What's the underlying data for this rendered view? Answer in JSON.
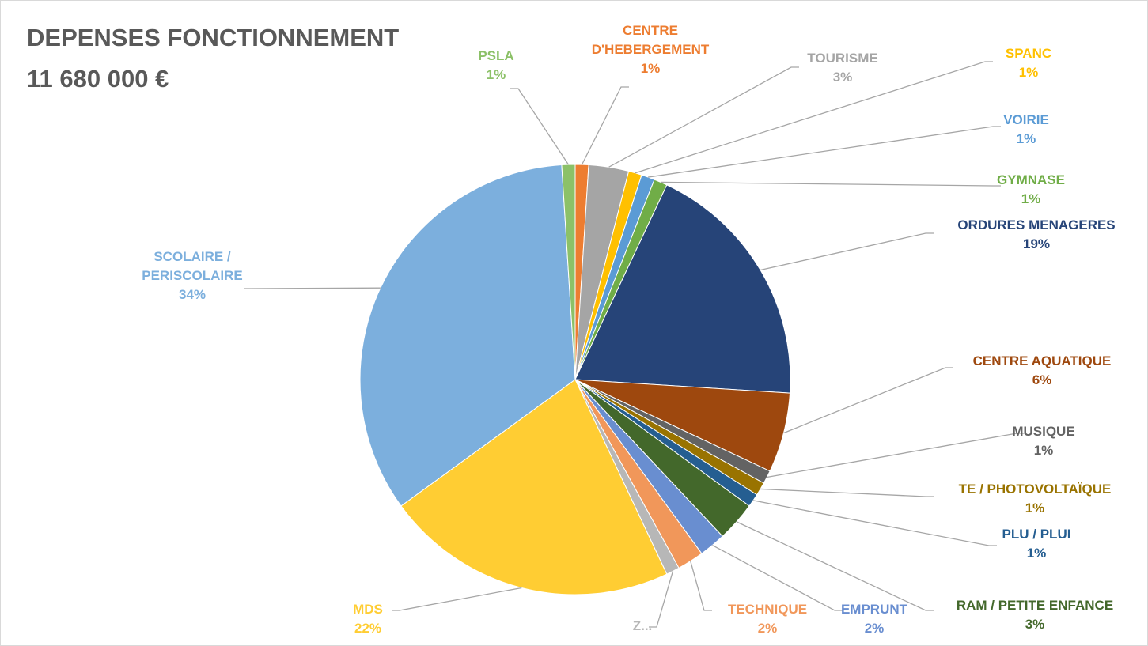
{
  "chart_data": {
    "type": "pie",
    "title": "DEPENSES FONCTIONNEMENT",
    "subtitle": "11 680 000 €",
    "categories": [
      "CENTRE D'HEBERGEMENT",
      "TOURISME",
      "SPANC",
      "VOIRIE",
      "GYMNASE",
      "ORDURES MENAGERES",
      "CENTRE AQUATIQUE",
      "MUSIQUE",
      "TE / PHOTOVOLTAÏQUE",
      "PLU / PLUI",
      "RAM / PETITE ENFANCE",
      "EMPRUNT",
      "TECHNIQUE",
      "Z...",
      "MDS",
      "SCOLAIRE / PERISCOLAIRE",
      "PSLA"
    ],
    "values": [
      1,
      3,
      1,
      1,
      1,
      19,
      6,
      1,
      1,
      1,
      3,
      2,
      2,
      1,
      22,
      34,
      1
    ],
    "value_labels": [
      "1%",
      "3%",
      "1%",
      "1%",
      "1%",
      "19%",
      "6%",
      "1%",
      "1%",
      "1%",
      "3%",
      "2%",
      "2%",
      null,
      "22%",
      "34%",
      "1%"
    ],
    "colors": [
      "#ed7d31",
      "#a5a5a5",
      "#ffc000",
      "#5b9bd5",
      "#70ad47",
      "#264478",
      "#9e480e",
      "#636363",
      "#997300",
      "#255e91",
      "#43682b",
      "#698ed0",
      "#f1975a",
      "#b7b7b7",
      "#ffcd33",
      "#7cafdd",
      "#8cc168"
    ]
  }
}
